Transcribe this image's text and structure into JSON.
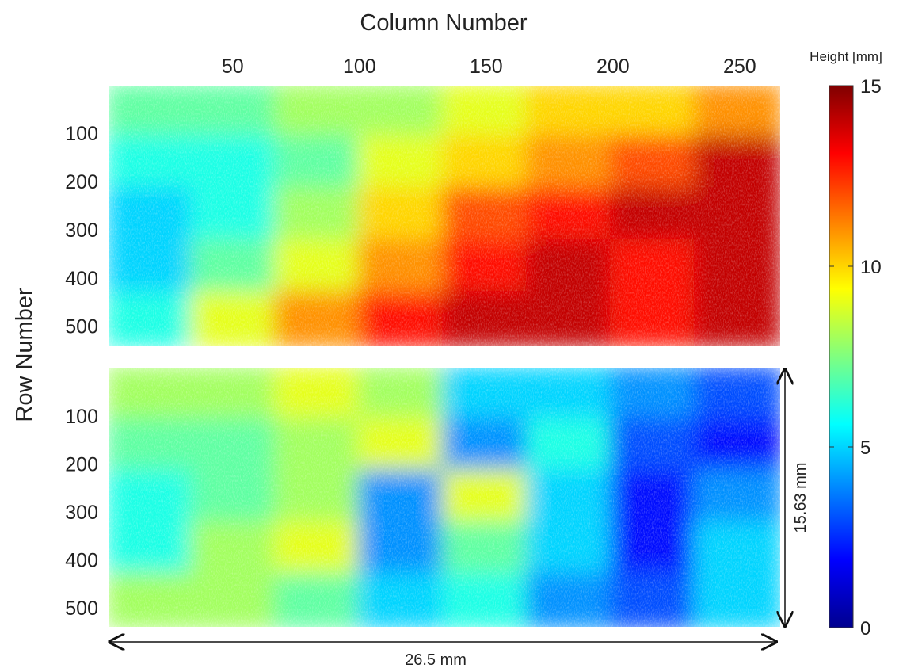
{
  "chart_data": {
    "type": "heatmap",
    "x_axis": {
      "label": "Column Number",
      "position": "top",
      "ticks": [
        50,
        100,
        150,
        200,
        250
      ],
      "range": [
        1,
        266
      ]
    },
    "y_axis": {
      "label": "Row Number",
      "ticks": [
        100,
        200,
        300,
        400,
        500
      ],
      "range": [
        1,
        540
      ]
    },
    "colorbar": {
      "label": "Height [mm]",
      "min": 0,
      "max": 15,
      "ticks": [
        0,
        5,
        10,
        15
      ],
      "colormap": "jet"
    },
    "panels": [
      {
        "name": "",
        "approx_grid_heights_mm": [
          [
            7,
            7,
            8,
            8,
            9,
            10,
            10,
            11
          ],
          [
            6,
            6,
            7,
            9,
            10,
            11,
            12,
            14
          ],
          [
            5,
            6,
            8,
            10,
            12,
            13,
            14,
            14
          ],
          [
            5,
            7,
            9,
            11,
            13,
            14,
            13,
            14
          ],
          [
            6,
            9,
            11,
            13,
            14,
            14,
            13,
            14
          ]
        ]
      },
      {
        "name": "",
        "approx_grid_heights_mm": [
          [
            8,
            8,
            9,
            8,
            5,
            5,
            4,
            3
          ],
          [
            7,
            7,
            8,
            9,
            4,
            6,
            3,
            2
          ],
          [
            6,
            7,
            8,
            4,
            9,
            5,
            2,
            4
          ],
          [
            6,
            8,
            9,
            4,
            7,
            5,
            2,
            5
          ],
          [
            8,
            8,
            7,
            5,
            6,
            4,
            3,
            5
          ]
        ]
      }
    ],
    "annotations": {
      "width": "26.5 mm",
      "height": "15.63 mm"
    }
  }
}
